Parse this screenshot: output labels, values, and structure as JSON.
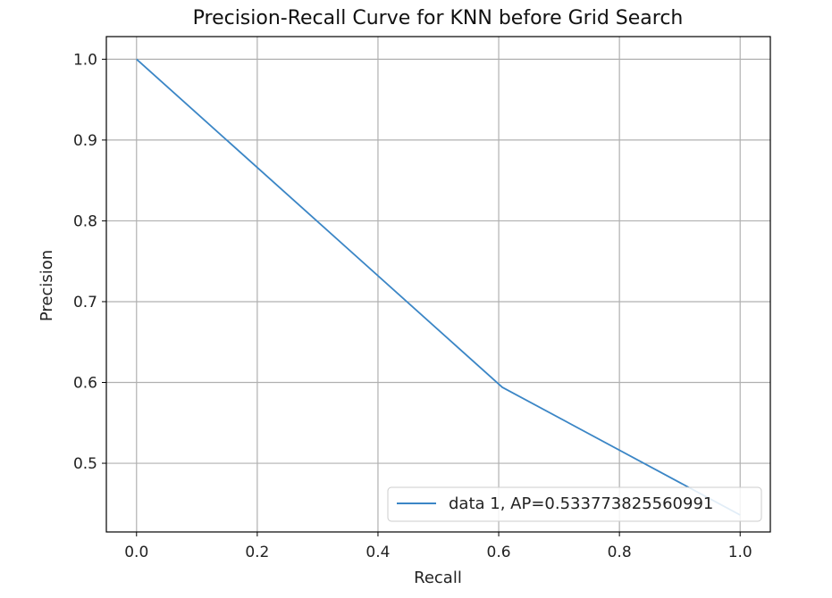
{
  "chart_data": {
    "type": "line",
    "title": "Precision-Recall Curve for KNN before Grid Search",
    "xlabel": "Recall",
    "ylabel": "Precision",
    "xlim": [
      -0.05,
      1.05
    ],
    "ylim": [
      0.415,
      1.028
    ],
    "xticks": [
      0.0,
      0.2,
      0.4,
      0.6,
      0.8,
      1.0
    ],
    "xtick_labels": [
      "0.0",
      "0.2",
      "0.4",
      "0.6",
      "0.8",
      "1.0"
    ],
    "yticks": [
      0.5,
      0.6,
      0.7,
      0.8,
      0.9,
      1.0
    ],
    "ytick_labels": [
      "0.5",
      "0.6",
      "0.7",
      "0.8",
      "0.9",
      "1.0"
    ],
    "grid": true,
    "legend_position": "lower-right",
    "series": [
      {
        "name": "data 1, AP=0.533773825560991",
        "color": "#3b86c6",
        "x": [
          0.0,
          0.606,
          1.0
        ],
        "y": [
          1.0,
          0.594,
          0.436
        ]
      }
    ]
  }
}
